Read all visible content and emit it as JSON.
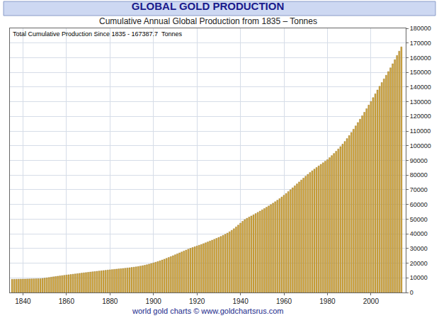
{
  "chart_data": {
    "type": "bar",
    "title": "GLOBAL GOLD PRODUCTION",
    "subtitle": "Cumulative Annual Global Production from 1835 – Tonnes",
    "annotations": [
      {
        "text": "Total Cumulative Production Since 1835 - 167387.7  Tonnes"
      },
      {
        "text": "world gold charts © www.goldchartsrus.com"
      }
    ],
    "x": [
      1835,
      1836,
      1837,
      1838,
      1839,
      1840,
      1841,
      1842,
      1843,
      1844,
      1845,
      1846,
      1847,
      1848,
      1849,
      1850,
      1851,
      1852,
      1853,
      1854,
      1855,
      1856,
      1857,
      1858,
      1859,
      1860,
      1861,
      1862,
      1863,
      1864,
      1865,
      1866,
      1867,
      1868,
      1869,
      1870,
      1871,
      1872,
      1873,
      1874,
      1875,
      1876,
      1877,
      1878,
      1879,
      1880,
      1881,
      1882,
      1883,
      1884,
      1885,
      1886,
      1887,
      1888,
      1889,
      1890,
      1891,
      1892,
      1893,
      1894,
      1895,
      1896,
      1897,
      1898,
      1899,
      1900,
      1901,
      1902,
      1903,
      1904,
      1905,
      1906,
      1907,
      1908,
      1909,
      1910,
      1911,
      1912,
      1913,
      1914,
      1915,
      1916,
      1917,
      1918,
      1919,
      1920,
      1921,
      1922,
      1923,
      1924,
      1925,
      1926,
      1927,
      1928,
      1929,
      1930,
      1931,
      1932,
      1933,
      1934,
      1935,
      1936,
      1937,
      1938,
      1939,
      1940,
      1941,
      1942,
      1943,
      1944,
      1945,
      1946,
      1947,
      1948,
      1949,
      1950,
      1951,
      1952,
      1953,
      1954,
      1955,
      1956,
      1957,
      1958,
      1959,
      1960,
      1961,
      1962,
      1963,
      1964,
      1965,
      1966,
      1967,
      1968,
      1969,
      1970,
      1971,
      1972,
      1973,
      1974,
      1975,
      1976,
      1977,
      1978,
      1979,
      1980,
      1981,
      1982,
      1983,
      1984,
      1985,
      1986,
      1987,
      1988,
      1989,
      1990,
      1991,
      1992,
      1993,
      1994,
      1995,
      1996,
      1997,
      1998,
      1999,
      2000,
      2001,
      2002,
      2003,
      2004,
      2005,
      2006,
      2007,
      2008,
      2009,
      2010,
      2011,
      2012,
      2013,
      2014
    ],
    "values": [
      9000,
      9030,
      9060,
      9090,
      9120,
      9150,
      9180,
      9220,
      9260,
      9300,
      9340,
      9380,
      9420,
      9470,
      9620,
      9820,
      10030,
      10260,
      10490,
      10710,
      10920,
      11130,
      11330,
      11530,
      11720,
      11910,
      12100,
      12290,
      12480,
      12670,
      12860,
      13050,
      13240,
      13420,
      13600,
      13780,
      13960,
      14130,
      14300,
      14470,
      14640,
      14810,
      14980,
      15150,
      15320,
      15480,
      15640,
      15800,
      15950,
      16100,
      16250,
      16400,
      16550,
      16710,
      16890,
      17080,
      17280,
      17500,
      17740,
      18000,
      18290,
      18600,
      18950,
      19340,
      19760,
      20200,
      20650,
      21120,
      21620,
      22150,
      22710,
      23290,
      23880,
      24490,
      25110,
      25740,
      26370,
      27000,
      27630,
      28250,
      28900,
      29530,
      30120,
      30660,
      31180,
      31700,
      32220,
      32760,
      33320,
      33900,
      34480,
      35070,
      35670,
      36280,
      36900,
      37540,
      38220,
      38940,
      39700,
      40500,
      41400,
      42400,
      43500,
      44700,
      45950,
      47250,
      48550,
      49700,
      50600,
      51400,
      52150,
      52950,
      53780,
      54620,
      55480,
      56350,
      57220,
      58100,
      58990,
      59920,
      60880,
      61870,
      62900,
      63960,
      65100,
      66280,
      67490,
      68760,
      70050,
      71370,
      72700,
      74030,
      75340,
      76640,
      77930,
      79250,
      80520,
      81760,
      82940,
      84070,
      85160,
      86250,
      87340,
      88410,
      89480,
      90540,
      91900,
      93300,
      94750,
      96250,
      97800,
      99420,
      101130,
      102950,
      104900,
      106950,
      109080,
      111280,
      113550,
      115830,
      118100,
      120420,
      122820,
      125260,
      127720,
      130210,
      132810,
      135400,
      137990,
      140520,
      143070,
      145550,
      148040,
      150530,
      153120,
      155850,
      158680,
      161530,
      164460,
      167387.7
    ],
    "color": "#d2a63c",
    "xlim": [
      1834,
      2016
    ],
    "xticks": [
      1840,
      1860,
      1880,
      1900,
      1920,
      1940,
      1960,
      1980,
      2000
    ],
    "ylim": [
      0,
      180000
    ],
    "yticks": [
      0,
      10000,
      20000,
      30000,
      40000,
      50000,
      60000,
      70000,
      80000,
      90000,
      100000,
      110000,
      120000,
      130000,
      140000,
      150000,
      160000,
      170000,
      180000
    ],
    "grid": true
  }
}
